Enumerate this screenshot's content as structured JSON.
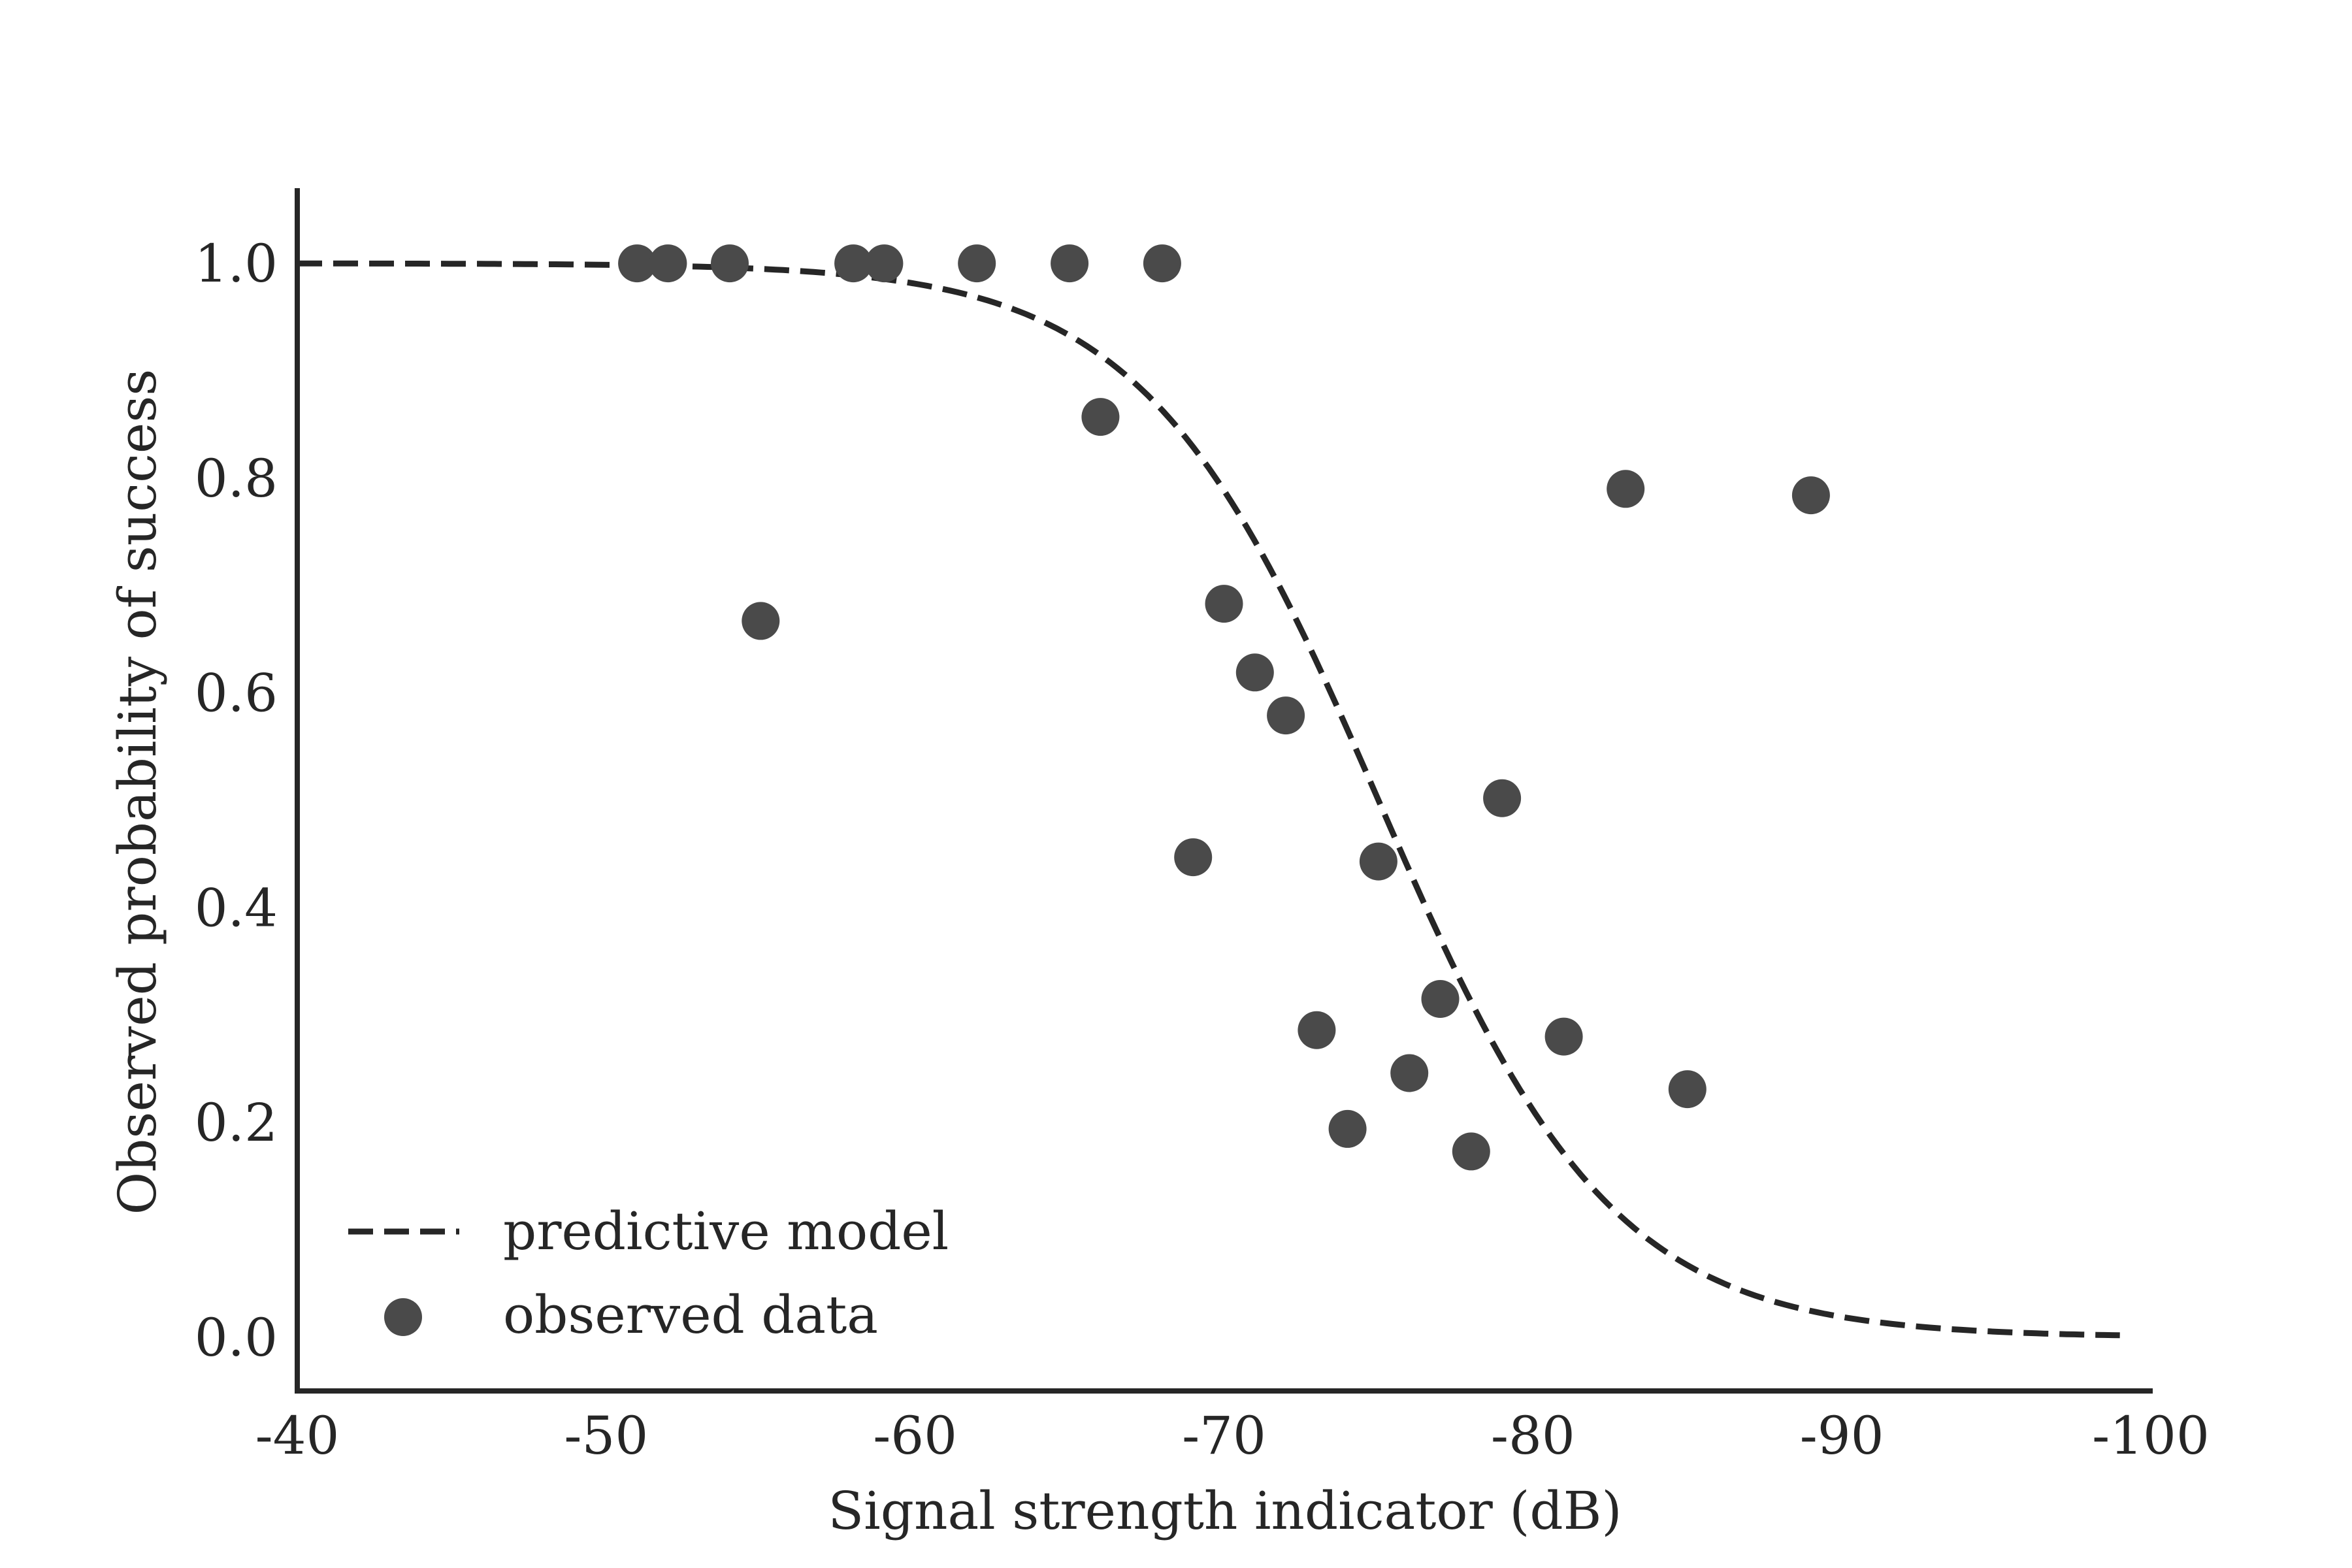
{
  "chart_data": {
    "type": "scatter",
    "xlabel": "Signal strength indicator (dB)",
    "ylabel": "Observed probability of success",
    "xlim": [
      -40,
      -100
    ],
    "ylim": [
      -0.05,
      1.07
    ],
    "x_ticks": [
      "-40",
      "-50",
      "-60",
      "-70",
      "-80",
      "-90",
      "-100"
    ],
    "x_tick_values": [
      -40,
      -50,
      -60,
      -70,
      -80,
      -90,
      -100
    ],
    "y_ticks": [
      "0.0",
      "0.2",
      "0.4",
      "0.6",
      "0.8",
      "1.0"
    ],
    "y_tick_values": [
      0.0,
      0.2,
      0.4,
      0.6,
      0.8,
      1.0
    ],
    "grid": false,
    "legend_position": "lower-left",
    "series": [
      {
        "name": "predictive model",
        "kind": "line",
        "style": "dashed",
        "color": "#262626",
        "model": {
          "form": "logistic",
          "midpoint": -75,
          "scale": 3.8
        },
        "x_range": [
          -40,
          -99
        ]
      },
      {
        "name": "observed data",
        "kind": "scatter",
        "color": "#4a4a4a",
        "x": [
          -51,
          -52,
          -54,
          -55,
          -58,
          -59,
          -62,
          -65,
          -66,
          -68,
          -69,
          -70,
          -71,
          -72,
          -73,
          -74,
          -75,
          -76,
          -77,
          -78,
          -79,
          -81,
          -83,
          -85,
          -89
        ],
        "y": [
          1.0,
          1.0,
          1.0,
          0.667,
          1.0,
          1.0,
          1.0,
          1.0,
          0.857,
          1.0,
          0.447,
          0.683,
          0.619,
          0.579,
          0.286,
          0.194,
          0.443,
          0.246,
          0.315,
          0.173,
          0.502,
          0.28,
          0.79,
          0.231,
          0.784
        ]
      }
    ]
  }
}
